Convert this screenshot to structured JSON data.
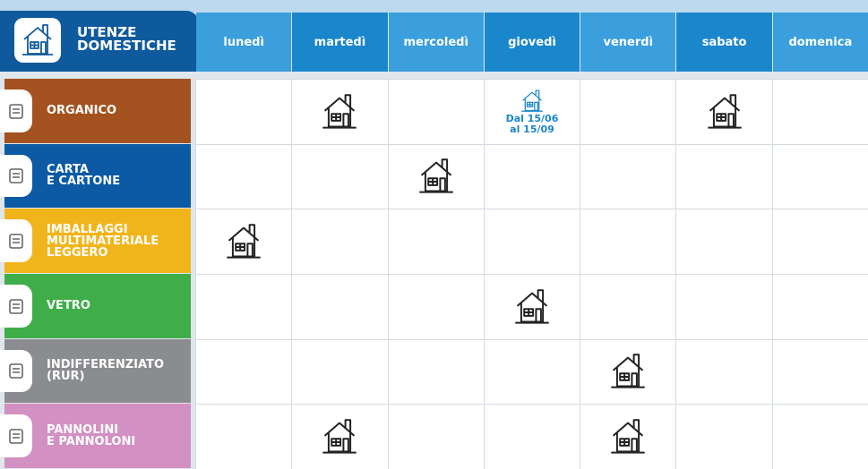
{
  "header": {
    "title_lines": [
      "UTENZE",
      "DOMESTICHE"
    ]
  },
  "days": [
    "lunedì",
    "martedì",
    "mercoledì",
    "giovedì",
    "venerdì",
    "sabato",
    "domenica"
  ],
  "rows": [
    {
      "label_lines": [
        "ORGANICO"
      ],
      "color": "#a4521f",
      "cells": [
        false,
        true,
        false,
        {
          "note_lines": [
            "Dal 15/06",
            "al 15/09"
          ]
        },
        false,
        true,
        false
      ]
    },
    {
      "label_lines": [
        "CARTA",
        "E CARTONE"
      ],
      "color": "#0b5aa3",
      "cells": [
        false,
        false,
        true,
        false,
        false,
        false,
        false
      ]
    },
    {
      "label_lines": [
        "IMBALLAGGI",
        "MULTIMATERIALE",
        "LEGGERO"
      ],
      "color": "#f1b51c",
      "cells": [
        true,
        false,
        false,
        false,
        false,
        false,
        false
      ]
    },
    {
      "label_lines": [
        "VETRO"
      ],
      "color": "#3fae49",
      "cells": [
        false,
        false,
        false,
        true,
        false,
        false,
        false
      ]
    },
    {
      "label_lines": [
        "INDIFFERENZIATO",
        "(RUR)"
      ],
      "color": "#8a8c8f",
      "cells": [
        false,
        false,
        false,
        false,
        true,
        false,
        false
      ]
    },
    {
      "label_lines": [
        "PANNOLINI",
        "E PANNOLONI"
      ],
      "color": "#d390c2",
      "cells": [
        false,
        true,
        false,
        false,
        true,
        false,
        false
      ]
    }
  ]
}
